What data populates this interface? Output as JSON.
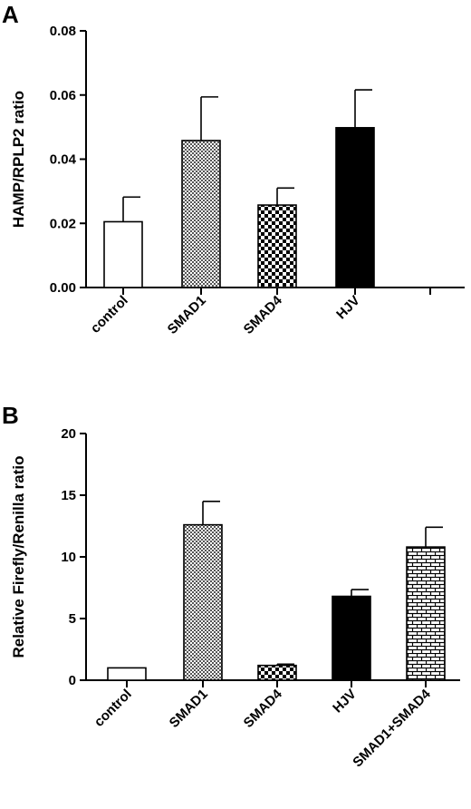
{
  "chart_data": [
    {
      "panel": "A",
      "type": "bar",
      "ylabel": "HAMP/RPLP2 ratio",
      "ylim": [
        0,
        0.08
      ],
      "yticks": [
        "0.00",
        "0.02",
        "0.04",
        "0.06",
        "0.08"
      ],
      "categories": [
        "control",
        "SMAD1",
        "SMAD4",
        "HJV",
        ""
      ],
      "values": [
        0.0205,
        0.0458,
        0.0257,
        0.0498,
        null
      ],
      "errors": [
        0.0077,
        0.0136,
        0.0053,
        0.0118,
        null
      ],
      "fills": [
        "white",
        "fine-checker",
        "coarse-checker",
        "black",
        "none"
      ],
      "grid": false
    },
    {
      "panel": "B",
      "type": "bar",
      "ylabel": "Relative Firefly/Renilla ratio",
      "ylim": [
        0,
        20
      ],
      "yticks": [
        "0",
        "5",
        "10",
        "15",
        "20"
      ],
      "categories": [
        "control",
        "SMAD1",
        "SMAD4",
        "HJV",
        "SMAD1+SMAD4"
      ],
      "values": [
        1.0,
        12.6,
        1.2,
        6.8,
        10.8
      ],
      "errors": [
        0.0,
        1.9,
        0.1,
        0.55,
        1.6
      ],
      "fills": [
        "white",
        "fine-checker",
        "coarse-checker",
        "black",
        "brick"
      ],
      "grid": false
    }
  ]
}
